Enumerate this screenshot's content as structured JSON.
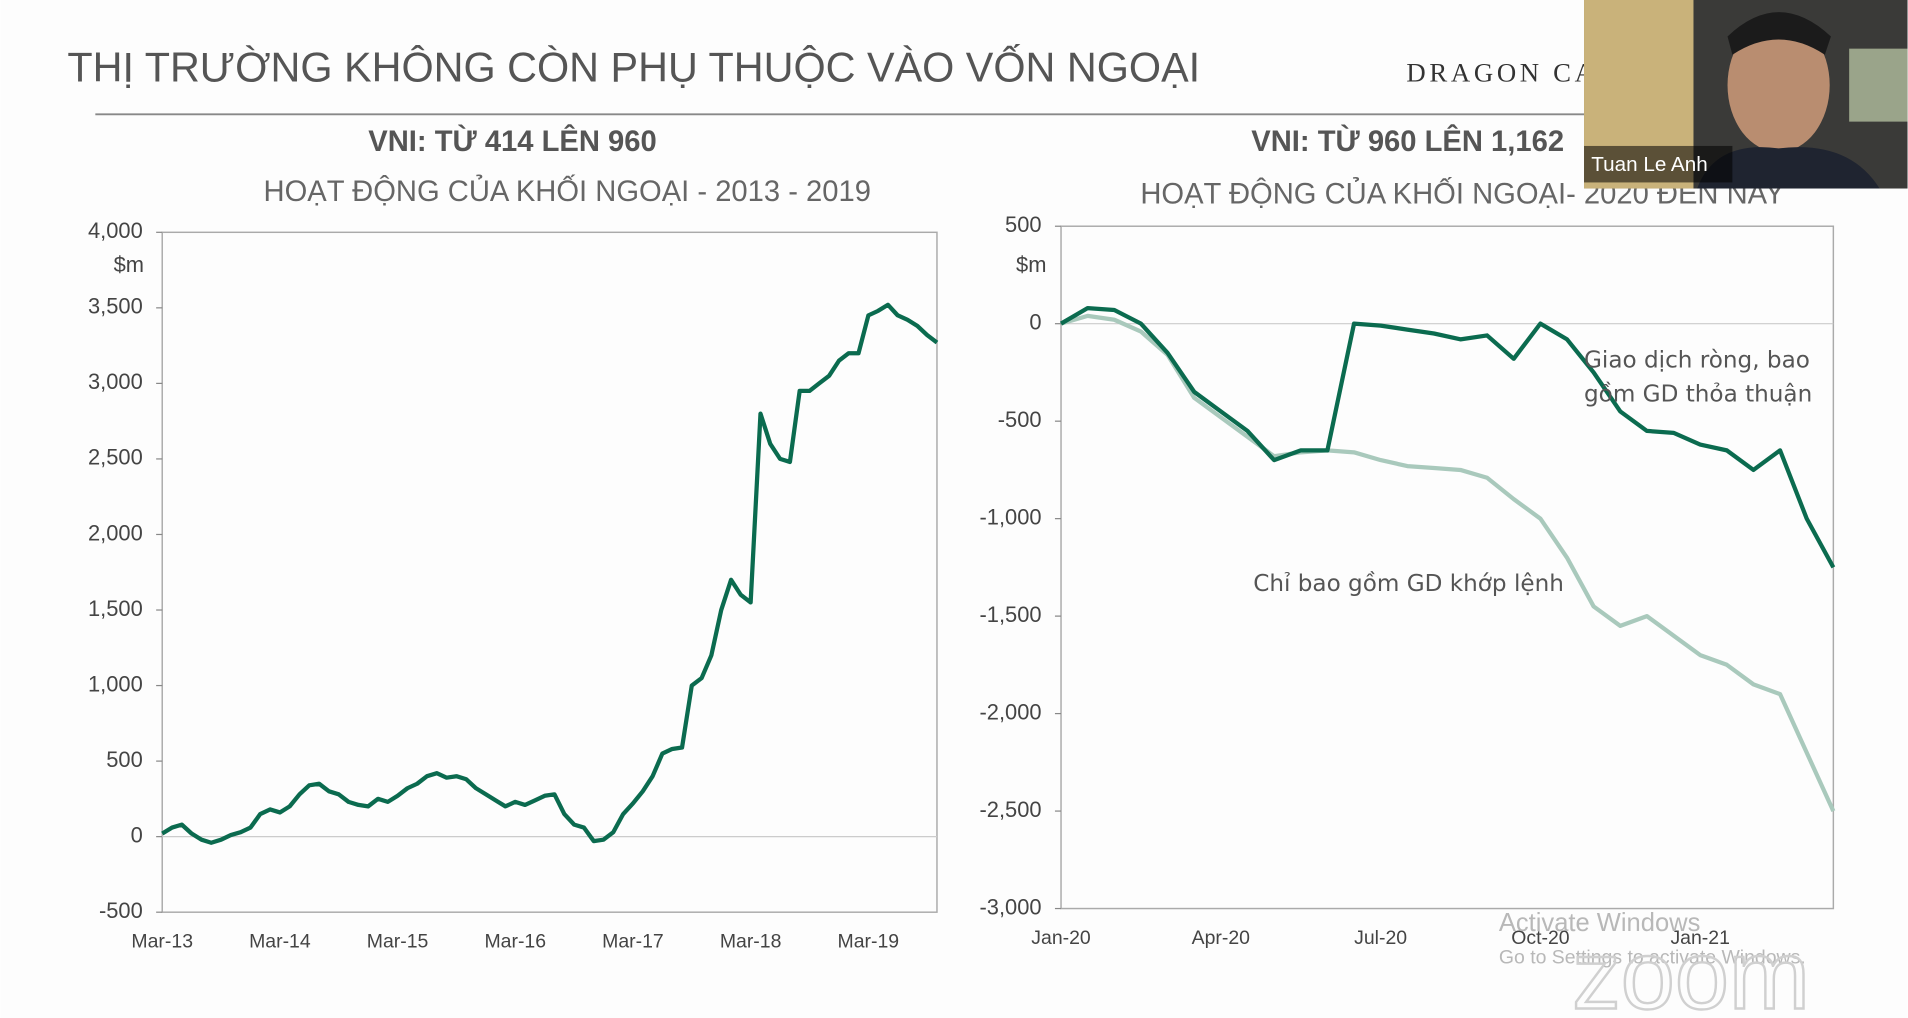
{
  "page": {
    "title": "THỊ TRƯỜNG KHÔNG CÒN PHỤ THUỘC VÀO VỐN NGOẠI",
    "brand": "DRAGON CA",
    "participant": "Tuan Le Anh",
    "watermark": [
      "Activate Windows",
      "Go to Settings to activate Windows."
    ],
    "logo": "zoom"
  },
  "chart_data": [
    {
      "type": "line",
      "title": "VNI: TỪ 414 LÊN 960",
      "subtitle": "HOẠT ĐỘNG CỦA KHỐI NGOẠI - 2013 - 2019",
      "ylabel": "$m",
      "color": "#0b6b4f",
      "categories": [
        "Mar-13",
        null,
        null,
        null,
        null,
        null,
        null,
        null,
        null,
        null,
        null,
        null,
        "Mar-14",
        null,
        null,
        null,
        null,
        null,
        null,
        null,
        null,
        null,
        null,
        null,
        "Mar-15",
        null,
        null,
        null,
        null,
        null,
        null,
        null,
        null,
        null,
        null,
        null,
        "Mar-16",
        null,
        null,
        null,
        null,
        null,
        null,
        null,
        null,
        null,
        null,
        null,
        "Mar-17",
        null,
        null,
        null,
        null,
        null,
        null,
        null,
        null,
        null,
        null,
        null,
        "Mar-18",
        null,
        null,
        null,
        null,
        null,
        null,
        null,
        null,
        null,
        null,
        null,
        "Mar-19",
        null,
        null,
        null,
        null,
        null,
        null,
        null
      ],
      "values": [
        20,
        60,
        80,
        20,
        -20,
        -40,
        -20,
        10,
        30,
        60,
        150,
        180,
        160,
        200,
        280,
        340,
        350,
        300,
        280,
        230,
        210,
        200,
        250,
        230,
        270,
        320,
        350,
        400,
        420,
        390,
        400,
        380,
        320,
        280,
        240,
        200,
        230,
        210,
        240,
        270,
        280,
        150,
        80,
        60,
        -30,
        -20,
        30,
        150,
        220,
        300,
        400,
        550,
        580,
        590,
        1000,
        1050,
        1200,
        1500,
        1700,
        1600,
        1550,
        2800,
        2600,
        2500,
        2480,
        2950,
        2950,
        3000,
        3050,
        3150,
        3200,
        3200,
        3450,
        3480,
        3520,
        3450,
        3420,
        3380,
        3320,
        3270
      ],
      "ylim": [
        -500,
        4000
      ],
      "yticks": [
        -500,
        0,
        500,
        {
          "value": 1000,
          "label": "1,000"
        },
        {
          "value": 1500,
          "label": "1,500"
        },
        {
          "value": 2000,
          "label": "2,000"
        },
        {
          "value": 2500,
          "label": "2,500"
        },
        {
          "value": 3000,
          "label": "3,000"
        },
        {
          "value": 3500,
          "label": "3,500"
        },
        {
          "value": 4000,
          "label": "4,000"
        }
      ]
    },
    {
      "type": "line",
      "title": "VNI: TỪ 960 LÊN 1,162",
      "subtitle": "HOẠT ĐỘNG CỦA KHỐI NGOẠI- 2020 ĐẾN NAY",
      "ylabel": "$m",
      "categories": [
        "Jan-20",
        null,
        null,
        null,
        null,
        null,
        "Apr-20",
        null,
        null,
        null,
        null,
        null,
        "Jul-20",
        null,
        null,
        null,
        null,
        null,
        "Oct-20",
        null,
        null,
        null,
        null,
        null,
        "Jan-21",
        null,
        null,
        null,
        null,
        null
      ],
      "series": [
        {
          "name": "Giao dịch ròng, bao gồm GD thỏa thuận",
          "color": "#0b6b4f",
          "values": [
            0,
            80,
            70,
            0,
            -150,
            -350,
            -450,
            -550,
            -700,
            -650,
            -650,
            0,
            -10,
            -30,
            -50,
            -80,
            -60,
            -180,
            0,
            -80,
            -250,
            -450,
            -550,
            -560,
            -620,
            -650,
            -750,
            -650,
            -1000,
            -1250
          ]
        },
        {
          "name": "Chỉ bao gồm GD khớp lệnh",
          "color": "#a9c9bc",
          "values": [
            0,
            40,
            20,
            -40,
            -160,
            -380,
            -480,
            -580,
            -680,
            -660,
            -650,
            -660,
            -700,
            -730,
            -740,
            -750,
            -790,
            -900,
            -1000,
            -1200,
            -1450,
            -1550,
            -1500,
            -1600,
            -1700,
            -1750,
            -1850,
            -1900,
            -2200,
            -2500
          ]
        }
      ],
      "ylim": [
        -3000,
        500
      ],
      "yticks": [
        {
          "value": -3000,
          "label": "-3,000"
        },
        {
          "value": -2500,
          "label": "-2,500"
        },
        {
          "value": -2000,
          "label": "-2,000"
        },
        {
          "value": -1500,
          "label": "-1,500"
        },
        {
          "value": -1000,
          "label": "-1,000"
        },
        -500,
        0,
        500
      ]
    }
  ]
}
